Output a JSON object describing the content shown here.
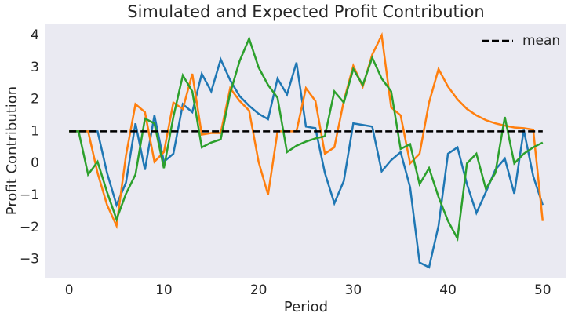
{
  "chart_data": {
    "type": "line",
    "title": "Simulated and Expected Profit Contribution",
    "xlabel": "Period",
    "ylabel": "Profit Contribution",
    "x": [
      0,
      1,
      2,
      3,
      4,
      5,
      6,
      7,
      8,
      9,
      10,
      11,
      12,
      13,
      14,
      15,
      16,
      17,
      18,
      19,
      20,
      21,
      22,
      23,
      24,
      25,
      26,
      27,
      28,
      29,
      30,
      31,
      32,
      33,
      34,
      35,
      36,
      37,
      38,
      39,
      40,
      41,
      42,
      43,
      44,
      45,
      46,
      47,
      48,
      49,
      50
    ],
    "series": [
      {
        "color": "#1f77b4",
        "values": [
          1.0,
          1.0,
          1.0,
          1.0,
          -0.3,
          -1.3,
          -0.6,
          1.25,
          -0.2,
          1.5,
          0.05,
          0.3,
          1.85,
          1.6,
          2.8,
          2.25,
          3.25,
          2.6,
          2.1,
          1.8,
          1.55,
          1.38,
          2.65,
          2.15,
          3.15,
          1.15,
          1.1,
          -0.3,
          -1.25,
          -0.55,
          1.25,
          1.2,
          1.15,
          -0.25,
          0.1,
          0.35,
          -0.75,
          -3.1,
          -3.25,
          -1.95,
          0.3,
          0.5,
          -0.65,
          -1.55,
          -0.9,
          -0.2,
          0.15,
          -0.95,
          1.05,
          -0.4,
          -1.3
        ]
      },
      {
        "color": "#ff7f0e",
        "values": [
          1.0,
          1.0,
          1.0,
          -0.3,
          -1.3,
          -1.95,
          0.25,
          1.85,
          1.6,
          0.05,
          0.35,
          1.9,
          1.7,
          2.8,
          0.9,
          0.95,
          0.95,
          2.35,
          1.95,
          1.65,
          0.05,
          -0.98,
          1.0,
          1.0,
          1.0,
          2.35,
          1.95,
          0.3,
          0.5,
          1.95,
          3.05,
          2.4,
          3.4,
          4.0,
          1.75,
          1.5,
          0.0,
          0.3,
          1.9,
          2.95,
          2.4,
          2.0,
          1.7,
          1.5,
          1.35,
          1.25,
          1.18,
          1.12,
          1.1,
          1.05,
          -1.8
        ]
      },
      {
        "color": "#2ca02c",
        "values": [
          1.0,
          1.0,
          -0.35,
          0.05,
          -0.9,
          -1.75,
          -0.95,
          -0.35,
          1.4,
          1.25,
          -0.15,
          1.45,
          2.75,
          2.25,
          0.5,
          0.65,
          0.75,
          2.2,
          3.2,
          3.9,
          3.0,
          2.45,
          2.05,
          0.35,
          0.55,
          0.68,
          0.78,
          0.85,
          2.25,
          1.9,
          2.95,
          2.45,
          3.3,
          2.65,
          2.25,
          0.45,
          0.6,
          -0.65,
          -0.15,
          -1.05,
          -1.8,
          -2.35,
          0.0,
          0.3,
          -0.8,
          -0.3,
          1.45,
          0.0,
          0.3,
          0.5,
          0.65
        ]
      },
      {
        "name": "mean",
        "color": "#000000",
        "dashed": true,
        "values": [
          1,
          1,
          1,
          1,
          1,
          1,
          1,
          1,
          1,
          1,
          1,
          1,
          1,
          1,
          1,
          1,
          1,
          1,
          1,
          1,
          1,
          1,
          1,
          1,
          1,
          1,
          1,
          1,
          1,
          1,
          1,
          1,
          1,
          1,
          1,
          1,
          1,
          1,
          1,
          1,
          1,
          1,
          1,
          1,
          1,
          1,
          1,
          1,
          1,
          1,
          1
        ]
      }
    ],
    "xlim": [
      -2.5,
      52.5
    ],
    "ylim": [
      -3.6,
      4.37
    ],
    "xticks": [
      0,
      10,
      20,
      30,
      40,
      50
    ],
    "yticks": [
      {
        "value": -3,
        "label": "−3"
      },
      {
        "value": -2,
        "label": "−2"
      },
      {
        "value": -1,
        "label": "−1"
      },
      0,
      1,
      2,
      3,
      4
    ],
    "grid": false,
    "legend": "upper right"
  }
}
